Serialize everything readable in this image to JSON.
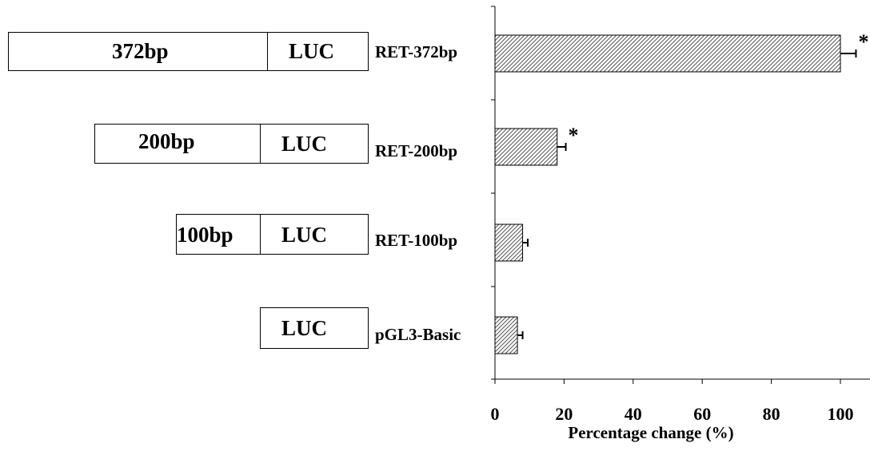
{
  "constructs": [
    {
      "row_label": "RET-372bp",
      "segment_label": "372bp",
      "luc_label": "LUC"
    },
    {
      "row_label": "RET-200bp",
      "segment_label": "200bp",
      "luc_label": "LUC"
    },
    {
      "row_label": "RET-100bp",
      "segment_label": "100bp",
      "luc_label": "LUC"
    },
    {
      "row_label": "pGL3-Basic",
      "segment_label": "",
      "luc_label": "LUC"
    }
  ],
  "chart_data": {
    "type": "bar",
    "orientation": "horizontal",
    "categories": [
      "RET-372bp",
      "RET-200bp",
      "RET-100bp",
      "pGL3-Basic"
    ],
    "values": [
      100,
      18,
      8,
      6.5
    ],
    "errors": [
      4.5,
      2.5,
      1.5,
      1.5
    ],
    "annotations": [
      "*",
      "*",
      "",
      ""
    ],
    "xlabel": "Percentage change (%)",
    "ylabel": "",
    "xlim": [
      0,
      110
    ],
    "xticks": [
      0,
      20,
      40,
      60,
      80,
      100
    ],
    "bar_fill": "diagonal-hatch",
    "grid": false,
    "legend": "none"
  }
}
